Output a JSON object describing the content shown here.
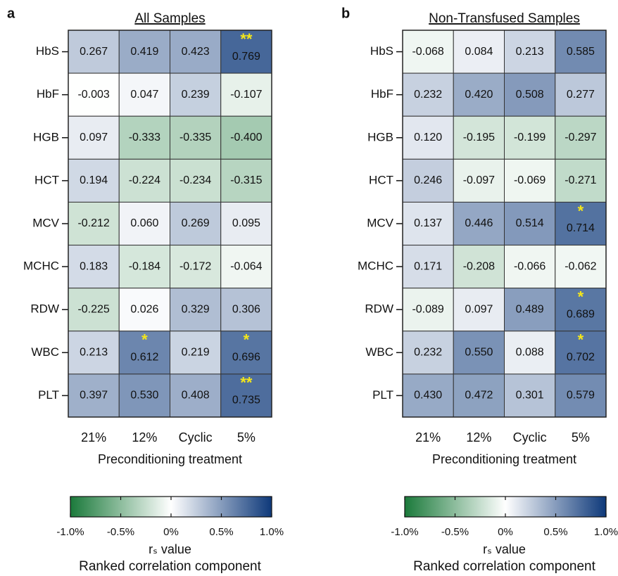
{
  "chart_data": [
    {
      "type": "heatmap",
      "panel_label": "a",
      "title": "All Samples",
      "rows": [
        "HbS",
        "HbF",
        "HGB",
        "HCT",
        "MCV",
        "MCHC",
        "RDW",
        "WBC",
        "PLT"
      ],
      "categories": [
        "21%",
        "12%",
        "Cyclic",
        "5%"
      ],
      "xlabel": "Preconditioning treatment",
      "values": [
        [
          0.267,
          0.419,
          0.423,
          0.769
        ],
        [
          -0.003,
          0.047,
          0.239,
          -0.107
        ],
        [
          0.097,
          -0.333,
          -0.335,
          -0.4
        ],
        [
          0.194,
          -0.224,
          -0.234,
          -0.315
        ],
        [
          -0.212,
          0.06,
          0.269,
          0.095
        ],
        [
          0.183,
          -0.184,
          -0.172,
          -0.064
        ],
        [
          -0.225,
          0.026,
          0.329,
          0.306
        ],
        [
          0.213,
          0.612,
          0.219,
          0.696
        ],
        [
          0.397,
          0.53,
          0.408,
          0.735
        ]
      ],
      "value_labels": [
        [
          "0.267",
          "0.419",
          "0.423",
          "0.769"
        ],
        [
          "-0.003",
          "0.047",
          "0.239",
          "-0.107"
        ],
        [
          "0.097",
          "-0.333",
          "-0.335",
          "-0.400"
        ],
        [
          "0.194",
          "-0.224",
          "-0.234",
          "-0.315"
        ],
        [
          "-0.212",
          "0.060",
          "0.269",
          "0.095"
        ],
        [
          "0.183",
          "-0.184",
          "-0.172",
          "-0.064"
        ],
        [
          "-0.225",
          "0.026",
          "0.329",
          "0.306"
        ],
        [
          "0.213",
          "0.612",
          "0.219",
          "0.696"
        ],
        [
          "0.397",
          "0.530",
          "0.408",
          "0.735"
        ]
      ],
      "annotations": [
        {
          "row": "HbS",
          "column": "5%",
          "text": "**"
        },
        {
          "row": "WBC",
          "column": "12%",
          "text": "*"
        },
        {
          "row": "WBC",
          "column": "5%",
          "text": "*"
        },
        {
          "row": "PLT",
          "column": "5%",
          "text": "**"
        }
      ],
      "colormap": [
        "#1b7a3b",
        "#ffffff",
        "#0e397a"
      ],
      "zlim": [
        -1,
        1
      ],
      "zticks": [
        {
          "value": -1,
          "label": "-1.0%"
        },
        {
          "value": -0.5,
          "label": "-0.5%"
        },
        {
          "value": 0,
          "label": "0%"
        },
        {
          "value": 0.5,
          "label": "0.5%"
        },
        {
          "value": 1,
          "label": "1.0%"
        }
      ],
      "colorbar_label": "rₛ value",
      "colorbar_sublabel": "Ranked correlation component"
    },
    {
      "type": "heatmap",
      "panel_label": "b",
      "title": "Non-Transfused Samples",
      "rows": [
        "HbS",
        "HbF",
        "HGB",
        "HCT",
        "MCV",
        "MCHC",
        "RDW",
        "WBC",
        "PLT"
      ],
      "categories": [
        "21%",
        "12%",
        "Cyclic",
        "5%"
      ],
      "xlabel": "Preconditioning treatment",
      "values": [
        [
          -0.068,
          0.084,
          0.213,
          0.585
        ],
        [
          0.232,
          0.42,
          0.508,
          0.277
        ],
        [
          0.12,
          -0.195,
          -0.199,
          -0.297
        ],
        [
          0.246,
          -0.097,
          -0.069,
          -0.271
        ],
        [
          0.137,
          0.446,
          0.514,
          0.714
        ],
        [
          0.171,
          -0.208,
          -0.066,
          -0.062
        ],
        [
          -0.089,
          0.097,
          0.489,
          0.689
        ],
        [
          0.232,
          0.55,
          0.088,
          0.702
        ],
        [
          0.43,
          0.472,
          0.301,
          0.579
        ]
      ],
      "value_labels": [
        [
          "-0.068",
          "0.084",
          "0.213",
          "0.585"
        ],
        [
          "0.232",
          "0.420",
          "0.508",
          "0.277"
        ],
        [
          "0.120",
          "-0.195",
          "-0.199",
          "-0.297"
        ],
        [
          "0.246",
          "-0.097",
          "-0.069",
          "-0.271"
        ],
        [
          "0.137",
          "0.446",
          "0.514",
          "0.714"
        ],
        [
          "0.171",
          "-0.208",
          "-0.066",
          "-0.062"
        ],
        [
          "-0.089",
          "0.097",
          "0.489",
          "0.689"
        ],
        [
          "0.232",
          "0.550",
          "0.088",
          "0.702"
        ],
        [
          "0.430",
          "0.472",
          "0.301",
          "0.579"
        ]
      ],
      "annotations": [
        {
          "row": "MCV",
          "column": "5%",
          "text": "*"
        },
        {
          "row": "RDW",
          "column": "5%",
          "text": "*"
        },
        {
          "row": "WBC",
          "column": "5%",
          "text": "*"
        }
      ],
      "colormap": [
        "#1b7a3b",
        "#ffffff",
        "#0e397a"
      ],
      "zlim": [
        -1,
        1
      ],
      "zticks": [
        {
          "value": -1,
          "label": "-1.0%"
        },
        {
          "value": -0.5,
          "label": "-0.5%"
        },
        {
          "value": 0,
          "label": "0%"
        },
        {
          "value": 0.5,
          "label": "0.5%"
        },
        {
          "value": 1,
          "label": "1.0%"
        }
      ],
      "colorbar_label": "rₛ value",
      "colorbar_sublabel": "Ranked correlation component"
    }
  ]
}
